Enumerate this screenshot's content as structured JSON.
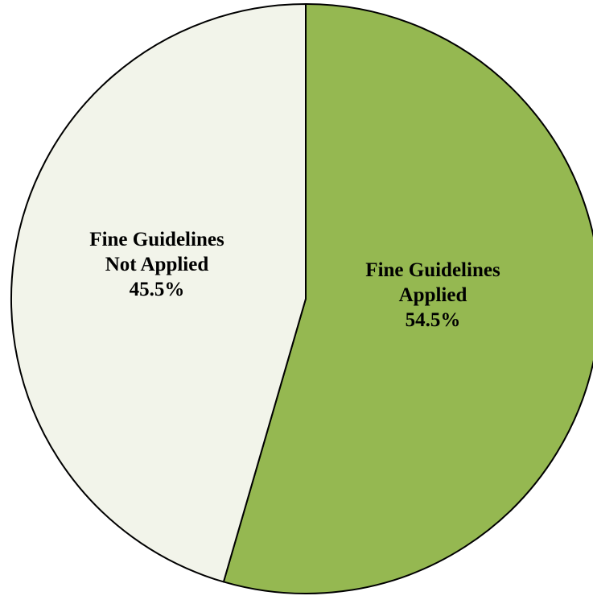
{
  "chart_data": {
    "type": "pie",
    "title": "",
    "slices": [
      {
        "label_lines": [
          "Fine Guidelines",
          "Applied"
        ],
        "value": 54.5,
        "value_label": "54.5%",
        "color": "#95b851"
      },
      {
        "label_lines": [
          "Fine Guidelines",
          "Not Applied"
        ],
        "value": 45.5,
        "value_label": "45.5%",
        "color": "#f2f4ea"
      }
    ],
    "start_angle_deg": 0,
    "direction": "clockwise",
    "border_color": "#000000",
    "legend": "none"
  }
}
